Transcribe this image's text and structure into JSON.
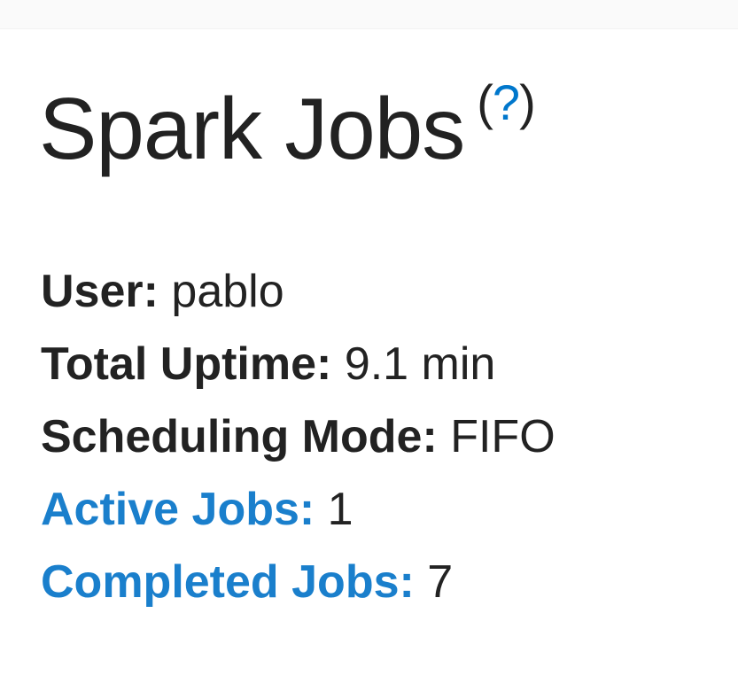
{
  "header": {
    "title": "Spark Jobs",
    "help_link": "?"
  },
  "summary": {
    "user_label": "User:",
    "user_value": "pablo",
    "uptime_label": "Total Uptime:",
    "uptime_value": "9.1 min",
    "mode_label": "Scheduling Mode:",
    "mode_value": "FIFO",
    "active_label": "Active Jobs:",
    "active_value": "1",
    "completed_label": "Completed Jobs:",
    "completed_value": "7"
  },
  "colors": {
    "link": "#1a7fcc",
    "text": "#222222"
  }
}
